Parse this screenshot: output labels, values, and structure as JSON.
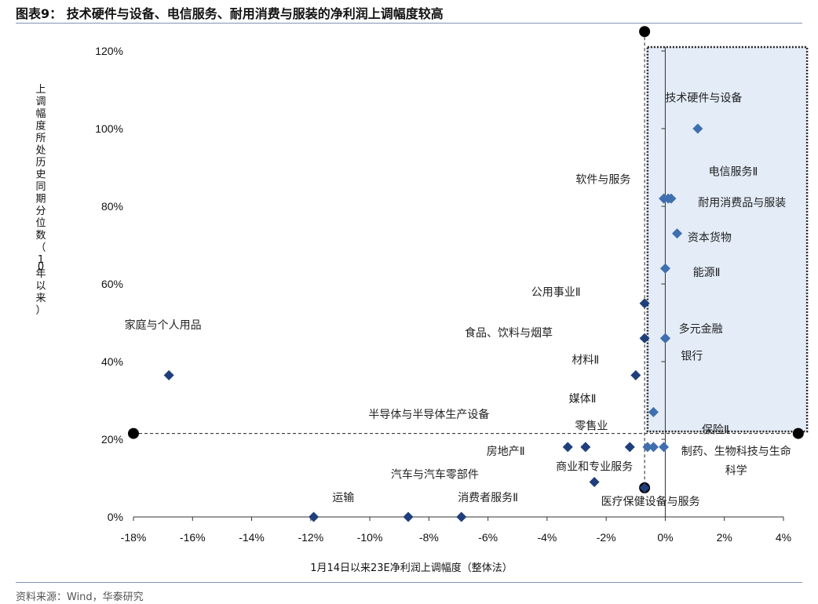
{
  "title": "图表9： 技术硬件与设备、电信服务、耐用消费与服装的净利润上调幅度较高",
  "source": "资料来源：Wind，华泰研究",
  "colors": {
    "marker": "#2e5f95",
    "highlight_fill": "#e3ecf7",
    "axis": "#333333",
    "rule": "#7f96b5",
    "ref_point": "#000000"
  },
  "chart_data": {
    "type": "scatter",
    "title": "技术硬件与设备、电信服务、耐用消费与服装的净利润上调幅度较高",
    "xlabel": "1月14日以来23E净利润上调幅度（整体法）",
    "ylabel": "上调幅度所处历史同期分位数（10年以来）",
    "xlim": [
      -18,
      4
    ],
    "ylim": [
      0,
      120
    ],
    "x_ticks": [
      "-18%",
      "-16%",
      "-14%",
      "-12%",
      "-10%",
      "-8%",
      "-6%",
      "-4%",
      "-2%",
      "0%",
      "2%",
      "4%"
    ],
    "y_ticks": [
      "0%",
      "20%",
      "40%",
      "60%",
      "80%",
      "100%",
      "120%"
    ],
    "highlight_region": {
      "x": [
        -0.6,
        4.8
      ],
      "y": [
        22,
        121
      ]
    },
    "reference_lines": {
      "x": -0.7,
      "y": 21.5
    },
    "reference_points": [
      {
        "x": -18,
        "y": 21.5
      },
      {
        "x": 4.5,
        "y": 21.5
      },
      {
        "x": -0.7,
        "y": 125
      },
      {
        "x": -0.7,
        "y": 7.5
      }
    ],
    "points": [
      {
        "label": "技术硬件与设备",
        "x": 1.1,
        "y": 100
      },
      {
        "label": "电信服务Ⅱ",
        "x": 0.1,
        "y": 82
      },
      {
        "label": "耐用消费品与服装",
        "x": 0.2,
        "y": 82
      },
      {
        "label": "软件与服务",
        "x": -0.05,
        "y": 82
      },
      {
        "label": "资本货物",
        "x": 0.4,
        "y": 73
      },
      {
        "label": "能源Ⅱ",
        "x": 0.0,
        "y": 64
      },
      {
        "label": "公用事业Ⅱ",
        "x": -0.7,
        "y": 55
      },
      {
        "label": "多元金融",
        "x": 0.0,
        "y": 46
      },
      {
        "label": "银行",
        "x": 0.0,
        "y": 46
      },
      {
        "label": "食品、饮料与烟草",
        "x": -0.7,
        "y": 46
      },
      {
        "label": "材料Ⅱ",
        "x": -1.0,
        "y": 36.5
      },
      {
        "label": "家庭与个人用品",
        "x": -16.8,
        "y": 36.5
      },
      {
        "label": "媒体Ⅱ",
        "x": -0.4,
        "y": 27
      },
      {
        "label": "半导体与半导体生产设备",
        "x": -2.7,
        "y": 18
      },
      {
        "label": "零售业",
        "x": -1.2,
        "y": 18
      },
      {
        "label": "房地产Ⅱ",
        "x": -3.3,
        "y": 18
      },
      {
        "label": "保险Ⅱ",
        "x": -0.6,
        "y": 18
      },
      {
        "label": "制药、生物科技与生命科学",
        "x": -0.05,
        "y": 18
      },
      {
        "label": "商业和专业服务",
        "x": -0.4,
        "y": 18
      },
      {
        "label": "汽车与汽车零部件",
        "x": -2.4,
        "y": 9
      },
      {
        "label": "医疗保健设备与服务",
        "x": -0.7,
        "y": 7.5
      },
      {
        "label": "运输",
        "x": -11.9,
        "y": 0
      },
      {
        "label": "消费者服务Ⅱ",
        "x": -6.9,
        "y": 0
      },
      {
        "label": "",
        "x": -8.7,
        "y": 0
      }
    ],
    "point_labels": [
      {
        "text": "技术硬件与设备",
        "x": 1.3,
        "y": 107
      },
      {
        "text": "电信服务Ⅱ",
        "x": 2.3,
        "y": 88
      },
      {
        "text": "软件与服务",
        "x": -2.1,
        "y": 86
      },
      {
        "text": "耐用消费品与服装",
        "x": 2.6,
        "y": 80
      },
      {
        "text": "资本货物",
        "x": 1.5,
        "y": 71
      },
      {
        "text": "能源Ⅱ",
        "x": 1.4,
        "y": 62
      },
      {
        "text": "公用事业Ⅱ",
        "x": -3.7,
        "y": 57
      },
      {
        "text": "多元金融",
        "x": 1.2,
        "y": 47.5
      },
      {
        "text": "食品、饮料与烟草",
        "x": -5.3,
        "y": 46.5
      },
      {
        "text": "银行",
        "x": 0.9,
        "y": 40.5
      },
      {
        "text": "材料Ⅱ",
        "x": -2.7,
        "y": 39.5
      },
      {
        "text": "家庭与个人用品",
        "x": -17.0,
        "y": 48.5
      },
      {
        "text": "媒体Ⅱ",
        "x": -2.8,
        "y": 29.5
      },
      {
        "text": "半导体与半导体生产设备",
        "x": -8.0,
        "y": 25.5
      },
      {
        "text": "零售业",
        "x": -2.5,
        "y": 22.5
      },
      {
        "text": "保险Ⅱ",
        "x": 1.7,
        "y": 21.5
      },
      {
        "text": "房地产Ⅱ",
        "x": -5.4,
        "y": 16
      },
      {
        "text": "制药、生物科技与生命",
        "x": 2.4,
        "y": 16
      },
      {
        "text": "科学",
        "x": 2.4,
        "y": 11
      },
      {
        "text": "商业和专业服务",
        "x": -2.4,
        "y": 12
      },
      {
        "text": "汽车与汽车零部件",
        "x": -7.8,
        "y": 10
      },
      {
        "text": "运输",
        "x": -10.9,
        "y": 4
      },
      {
        "text": "消费者服务Ⅱ",
        "x": -6.0,
        "y": 4
      },
      {
        "text": "医疗保健设备与服务",
        "x": -0.5,
        "y": 3
      }
    ]
  }
}
